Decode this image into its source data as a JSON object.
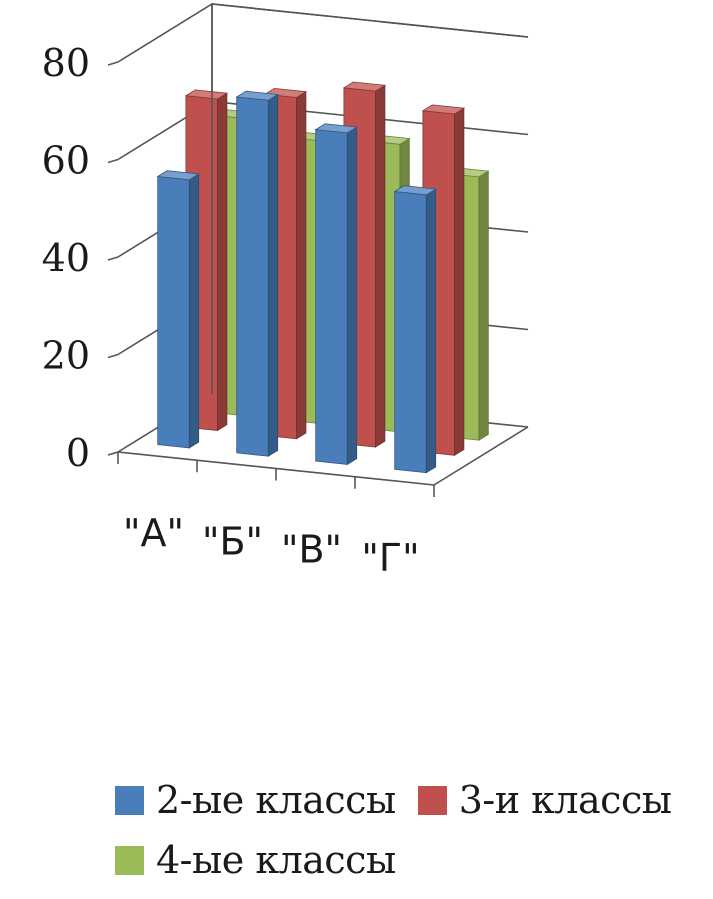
{
  "chart_data": {
    "type": "bar",
    "variant": "3d-clustered",
    "categories": [
      "\"А\"",
      "\"Б\"",
      "\"В\"",
      "\"Г\""
    ],
    "series": [
      {
        "name": "2-ые классы",
        "color": "#4a7ebb",
        "values": [
          55,
          73,
          68,
          57
        ]
      },
      {
        "name": "3-и классы",
        "color": "#c0504d",
        "values": [
          68,
          70,
          73,
          70
        ]
      },
      {
        "name": "4-ые классы",
        "color": "#9bbb59",
        "values": [
          61,
          58,
          59,
          54
        ]
      }
    ],
    "ylim": [
      0,
      80
    ],
    "yticks": [
      "0",
      "20",
      "40",
      "60",
      "80"
    ],
    "grid": true,
    "legend": "bottom",
    "title": "",
    "xlabel": "",
    "ylabel": ""
  }
}
